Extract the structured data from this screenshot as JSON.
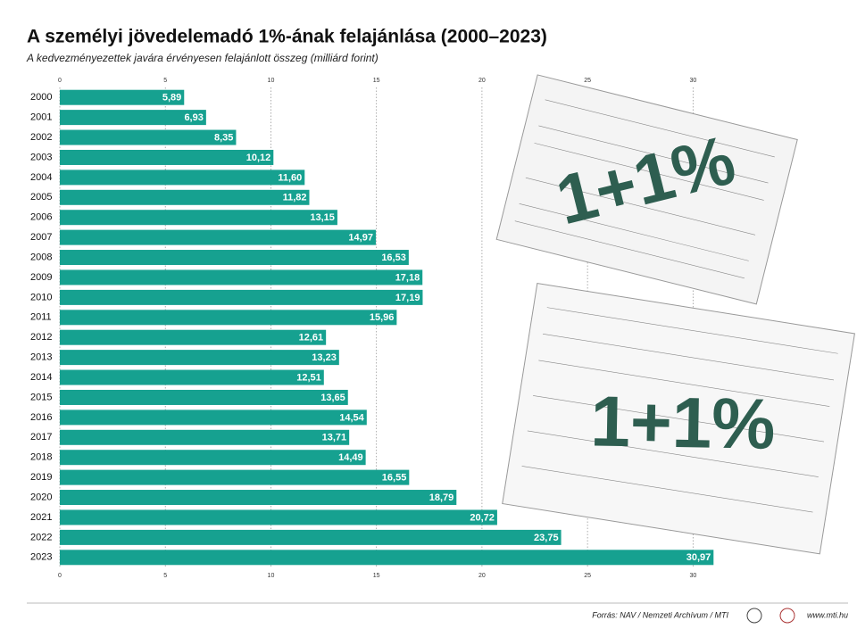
{
  "chart_data": {
    "type": "barh",
    "title": "A személyi jövedelemadó 1%-ának felajánlása (2000–2023)",
    "subtitle": "A kedvezményezettek javára érvényesen felajánlott összeg (milliárd forint)",
    "categories": [
      "2000",
      "2001",
      "2002",
      "2003",
      "2004",
      "2005",
      "2006",
      "2007",
      "2008",
      "2009",
      "2010",
      "2011",
      "2012",
      "2013",
      "2014",
      "2015",
      "2016",
      "2017",
      "2018",
      "2019",
      "2020",
      "2021",
      "2022",
      "2023"
    ],
    "values": [
      5.89,
      6.93,
      8.35,
      10.12,
      11.6,
      11.82,
      13.15,
      14.97,
      16.53,
      17.18,
      17.19,
      15.96,
      12.61,
      13.23,
      12.51,
      13.65,
      14.54,
      13.71,
      14.49,
      16.55,
      18.79,
      20.72,
      23.75,
      30.97
    ],
    "value_labels": [
      "5,89",
      "6,93",
      "8,35",
      "10,12",
      "11,60",
      "11,82",
      "13,15",
      "14,97",
      "16,53",
      "17,18",
      "17,19",
      "15,96",
      "12,61",
      "13,23",
      "12,51",
      "13,65",
      "14,54",
      "13,71",
      "14,49",
      "16,55",
      "18,79",
      "20,72",
      "23,75",
      "30,97"
    ],
    "color": "#16a190",
    "xlim": [
      0,
      31
    ],
    "xticks": [
      0,
      5,
      10,
      15,
      20,
      25,
      30
    ],
    "grid": true,
    "annotations": [
      "1+1%",
      "1+1%"
    ],
    "source": "Forrás: NAV / Nemzeti Archívum / MTI",
    "website": "www.mti.hu"
  }
}
